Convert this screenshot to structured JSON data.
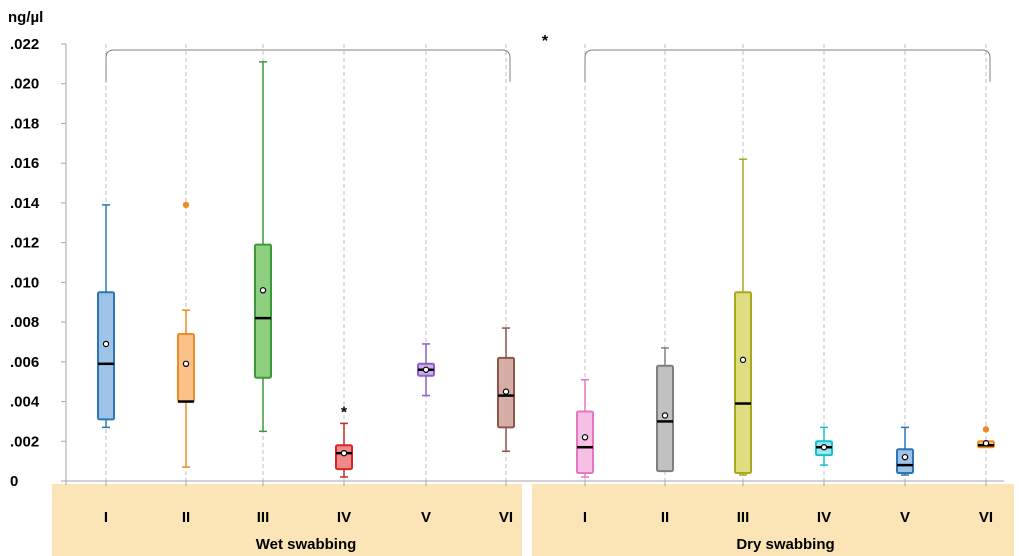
{
  "chart_data": {
    "type": "boxplot",
    "ylabel": "ng/µl",
    "ylim": [
      0,
      0.022
    ],
    "y_ticks": [
      {
        "value": 0,
        "label": "0"
      },
      {
        "value": 0.002,
        "label": ".002"
      },
      {
        "value": 0.004,
        "label": ".004"
      },
      {
        "value": 0.006,
        "label": ".006"
      },
      {
        "value": 0.008,
        "label": ".008"
      },
      {
        "value": 0.01,
        "label": ".010"
      },
      {
        "value": 0.012,
        "label": ".012"
      },
      {
        "value": 0.014,
        "label": ".014"
      },
      {
        "value": 0.016,
        "label": ".016"
      },
      {
        "value": 0.018,
        "label": ".018"
      },
      {
        "value": 0.02,
        "label": ".020"
      },
      {
        "value": 0.022,
        "label": ".022"
      }
    ],
    "grid": "vertical-dashed",
    "groups": [
      {
        "label": "Wet swabbing",
        "from": 0,
        "to": 5
      },
      {
        "label": "Dry swabbing",
        "from": 6,
        "to": 11
      }
    ],
    "group_significance": "*",
    "boxes": [
      {
        "category": "I",
        "group": "Wet swabbing",
        "color": "#2e75b6",
        "fill": "#9dc3e6",
        "min": 0.0027,
        "q1": 0.0031,
        "median": 0.0059,
        "q3": 0.0095,
        "max": 0.0139,
        "mean": 0.0069,
        "outliers": [],
        "annotation": ""
      },
      {
        "category": "II",
        "group": "Wet swabbing",
        "color": "#f08a24",
        "fill": "#f9c08a",
        "min": 0.0007,
        "q1": 0.004,
        "median": 0.004,
        "q3": 0.0074,
        "max": 0.0086,
        "mean": 0.0059,
        "outliers": [
          0.0139
        ],
        "annotation": ""
      },
      {
        "category": "III",
        "group": "Wet swabbing",
        "color": "#3a9a3a",
        "fill": "#8fcf80",
        "min": 0.0025,
        "q1": 0.0052,
        "median": 0.0082,
        "q3": 0.0119,
        "max": 0.0211,
        "mean": 0.0096,
        "outliers": [],
        "annotation": ""
      },
      {
        "category": "IV",
        "group": "Wet swabbing",
        "color": "#d62728",
        "fill": "#f08a8a",
        "min": 0.0002,
        "q1": 0.0006,
        "median": 0.0014,
        "q3": 0.0018,
        "max": 0.0029,
        "mean": 0.0014,
        "outliers": [],
        "annotation": "*"
      },
      {
        "category": "V",
        "group": "Wet swabbing",
        "color": "#8e5fc7",
        "fill": "#c9b0ea",
        "min": 0.0043,
        "q1": 0.0053,
        "median": 0.0056,
        "q3": 0.0059,
        "max": 0.0069,
        "mean": 0.0056,
        "outliers": [],
        "annotation": ""
      },
      {
        "category": "VI",
        "group": "Wet swabbing",
        "color": "#8c564b",
        "fill": "#d6aea6",
        "min": 0.0015,
        "q1": 0.0027,
        "median": 0.0043,
        "q3": 0.0062,
        "max": 0.0077,
        "mean": 0.0045,
        "outliers": [],
        "annotation": ""
      },
      {
        "category": "I",
        "group": "Dry swabbing",
        "color": "#e377c2",
        "fill": "#f6c0e4",
        "min": 0.0002,
        "q1": 0.0004,
        "median": 0.0017,
        "q3": 0.0035,
        "max": 0.0051,
        "mean": 0.0022,
        "outliers": [],
        "annotation": ""
      },
      {
        "category": "II",
        "group": "Dry swabbing",
        "color": "#7f7f7f",
        "fill": "#c0c0c0",
        "min": 0.0005,
        "q1": 0.0005,
        "median": 0.003,
        "q3": 0.0058,
        "max": 0.0067,
        "mean": 0.0033,
        "outliers": [],
        "annotation": ""
      },
      {
        "category": "III",
        "group": "Dry swabbing",
        "color": "#a8a820",
        "fill": "#dede80",
        "min": 0.0003,
        "q1": 0.0004,
        "median": 0.0039,
        "q3": 0.0095,
        "max": 0.0162,
        "mean": 0.0061,
        "outliers": [],
        "annotation": ""
      },
      {
        "category": "IV",
        "group": "Dry swabbing",
        "color": "#17becf",
        "fill": "#9fe6ee",
        "min": 0.0008,
        "q1": 0.0013,
        "median": 0.0017,
        "q3": 0.002,
        "max": 0.0027,
        "mean": 0.0017,
        "outliers": [],
        "annotation": ""
      },
      {
        "category": "V",
        "group": "Dry swabbing",
        "color": "#2e75b6",
        "fill": "#9dc3e6",
        "min": 0.0003,
        "q1": 0.0004,
        "median": 0.0008,
        "q3": 0.0016,
        "max": 0.0027,
        "mean": 0.0012,
        "outliers": [],
        "annotation": ""
      },
      {
        "category": "VI",
        "group": "Dry swabbing",
        "color": "#f08a24",
        "fill": "#f9c08a",
        "min": 0.0017,
        "q1": 0.0017,
        "median": 0.0018,
        "q3": 0.002,
        "max": 0.002,
        "mean": 0.0019,
        "outliers": [
          0.0026
        ],
        "annotation": ""
      }
    ],
    "band_color": "#fbe5b6"
  }
}
